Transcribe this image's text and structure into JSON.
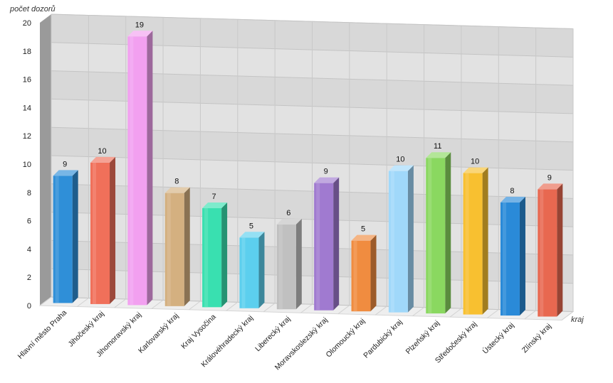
{
  "chart_data": {
    "type": "bar",
    "title": "",
    "ylabel": "počet dozorů",
    "xlabel": "kraj",
    "ylim": [
      0,
      20
    ],
    "yticks": [
      0,
      2,
      4,
      6,
      8,
      10,
      12,
      14,
      16,
      18,
      20
    ],
    "grid": true,
    "categories": [
      "Hlavní město Praha",
      "Jihočeský kraj",
      "Jihomoravský kraj",
      "Karlovarský kraj",
      "Kraj Vysočina",
      "Královéhradecký kraj",
      "Liberecký kraj",
      "Moravskoslezský kraj",
      "Olomoucký kraj",
      "Pardubický kraj",
      "Plzeňský kraj",
      "Středočeský kraj",
      "Ústecký kraj",
      "Zlínský kraj"
    ],
    "values": [
      9,
      10,
      19,
      8,
      7,
      5,
      6,
      9,
      5,
      10,
      11,
      10,
      8,
      9
    ],
    "colors": [
      "#2f8fd8",
      "#f0705a",
      "#f2a0f0",
      "#d4b080",
      "#39e0b0",
      "#5ccfee",
      "#c0c0c0",
      "#a07ad0",
      "#f08c40",
      "#a0d8fa",
      "#8ad860",
      "#f8c030",
      "#2a8ad8",
      "#e86850"
    ]
  }
}
